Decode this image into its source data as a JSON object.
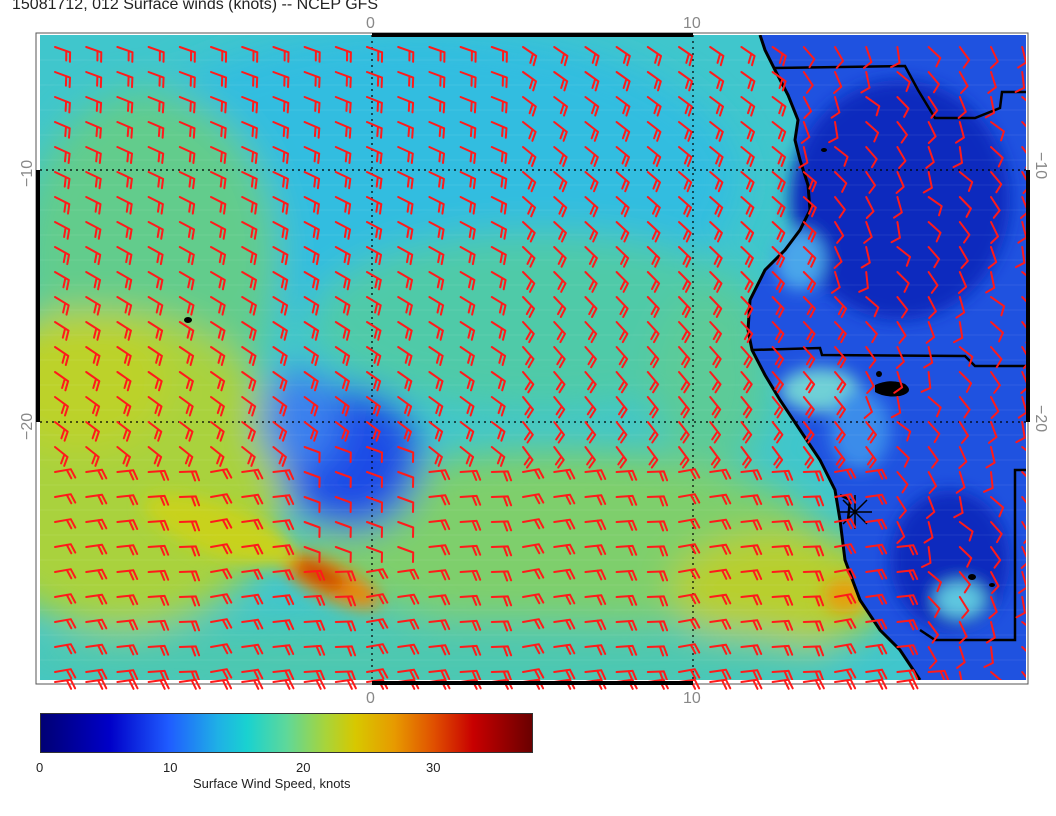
{
  "title": "15081712, 012 Surface winds (knots) -- NCEP GFS",
  "map": {
    "lon_ticks": [
      "0",
      "10"
    ],
    "lat_ticks": [
      "−10",
      "−20"
    ],
    "barb_color": "#ff1a1a",
    "coast_color": "#000000",
    "features": [
      "coastline",
      "national-borders",
      "islands",
      "wind-barbs",
      "wind-speed-shading",
      "station-marker"
    ]
  },
  "colorbar": {
    "label": "Surface Wind Speed, knots",
    "ticks": [
      "0",
      "10",
      "20",
      "30"
    ],
    "range": [
      0,
      37
    ],
    "colors": [
      "#000074",
      "#0000c8",
      "#1f5cff",
      "#1fb0e6",
      "#19d2d0",
      "#5ed89a",
      "#a8d43a",
      "#d7c800",
      "#e79a00",
      "#e05000",
      "#c80000",
      "#6a0000"
    ]
  }
}
